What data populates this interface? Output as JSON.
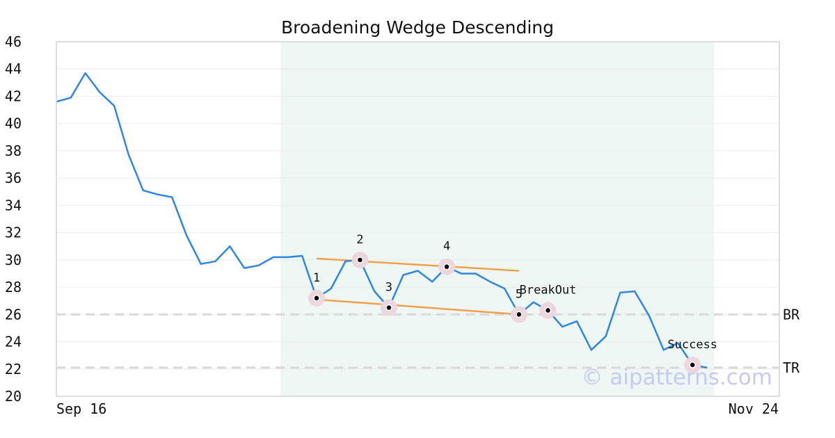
{
  "chart_data": {
    "type": "line",
    "title": "Broadening Wedge Descending",
    "xlabel": "",
    "ylabel": "",
    "ylim": [
      20,
      46
    ],
    "yticks": [
      20,
      22,
      24,
      26,
      28,
      30,
      32,
      34,
      36,
      38,
      40,
      42,
      44,
      46
    ],
    "x_tick_labels": {
      "start": "Sep 16",
      "end": "Nov 24"
    },
    "grid": "horizontal",
    "highlight_range": {
      "from_index": 16,
      "to_index": 45
    },
    "series": [
      {
        "values": [
          41.6,
          41.9,
          43.7,
          42.3,
          41.3,
          37.7,
          35.1,
          34.8,
          34.6,
          31.8,
          29.7,
          29.9,
          31.0,
          29.4,
          29.6,
          30.2,
          30.2,
          30.3,
          27.2,
          27.9,
          29.9,
          30.0,
          27.7,
          26.5,
          28.9,
          29.2,
          28.4,
          29.5,
          29.0,
          29.0,
          28.4,
          27.9,
          26.0,
          26.9,
          26.3,
          25.1,
          25.5,
          23.4,
          24.4,
          27.6,
          27.7,
          25.9,
          23.4,
          23.9,
          22.3,
          22.1
        ],
        "color": "#2e86e0"
      }
    ],
    "pattern_lines": [
      {
        "from": [
          18,
          30.1
        ],
        "to": [
          32,
          29.2
        ],
        "color": "#f5a04a"
      },
      {
        "from": [
          18,
          27.1
        ],
        "to": [
          32,
          26.0
        ],
        "color": "#f5a04a"
      }
    ],
    "pivots": [
      {
        "label": "1",
        "index": 18,
        "value": 27.2
      },
      {
        "label": "2",
        "index": 21,
        "value": 30.0
      },
      {
        "label": "3",
        "index": 23,
        "value": 26.5
      },
      {
        "label": "4",
        "index": 27,
        "value": 29.5
      },
      {
        "label": "5",
        "index": 32,
        "value": 26.0
      }
    ],
    "events": [
      {
        "label": "BreakOut",
        "index": 34,
        "value": 26.3
      },
      {
        "label": "Success",
        "index": 44,
        "value": 22.3
      }
    ],
    "reference_lines": [
      {
        "label": "BR",
        "value": 26.0
      },
      {
        "label": "TR",
        "value": 22.1
      }
    ],
    "watermark": "© aipatterns.com",
    "colors": {
      "line": "#2e86e0",
      "pattern": "#f5a04a",
      "highlight": "#eef7f3",
      "marker_halo": "#ecd7df",
      "reference": "#d9d9d9",
      "frame": "#dddddd",
      "grid": "#ececec"
    }
  }
}
